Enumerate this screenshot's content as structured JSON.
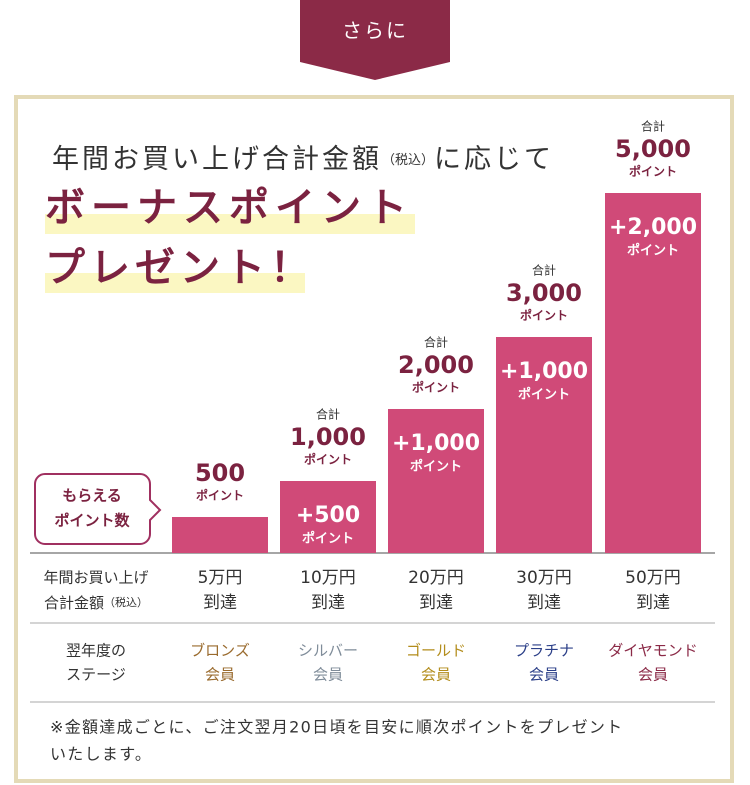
{
  "badge": "さらに",
  "heading": {
    "lead": "年間お買い上げ合計金額",
    "tax": "（税込）",
    "tail": "に応じて",
    "line1": "ボーナスポイント",
    "line2": "プレゼント！"
  },
  "callout": [
    "もらえる",
    "ポイント数"
  ],
  "chart_data": {
    "type": "bar",
    "categories": [
      "5万円",
      "10万円",
      "20万円",
      "30万円",
      "50万円"
    ],
    "category_suffix": "到達",
    "values": [
      500,
      1000,
      2000,
      3000,
      5000
    ],
    "value_labels": [
      "500",
      "1,000",
      "2,000",
      "3,000",
      "5,000"
    ],
    "total_prefix": "合計",
    "unit": "ポイント",
    "bonus_labels": [
      null,
      "+500",
      "+1,000",
      "+1,000",
      "+2,000"
    ],
    "color": "#d04a78",
    "ylim": [
      0,
      5000
    ]
  },
  "table": {
    "amount_header": [
      "年間お買い上げ",
      "合計金額",
      "（税込）"
    ],
    "stage_header": [
      "翌年度の",
      "ステージ"
    ],
    "stages": [
      {
        "name": "ブロンズ",
        "color": "#9a6b2e"
      },
      {
        "name": "シルバー",
        "color": "#7f8c99"
      },
      {
        "name": "ゴールド",
        "color": "#b38d1c"
      },
      {
        "name": "プラチナ",
        "color": "#2b3f88"
      },
      {
        "name": "ダイヤモンド",
        "color": "#8b2a47"
      }
    ],
    "stage_suffix": "会員"
  },
  "note": [
    "※金額達成ごとに、ご注文翌月20日頃を目安に順次ポイントをプレゼント",
    "いたします。"
  ]
}
